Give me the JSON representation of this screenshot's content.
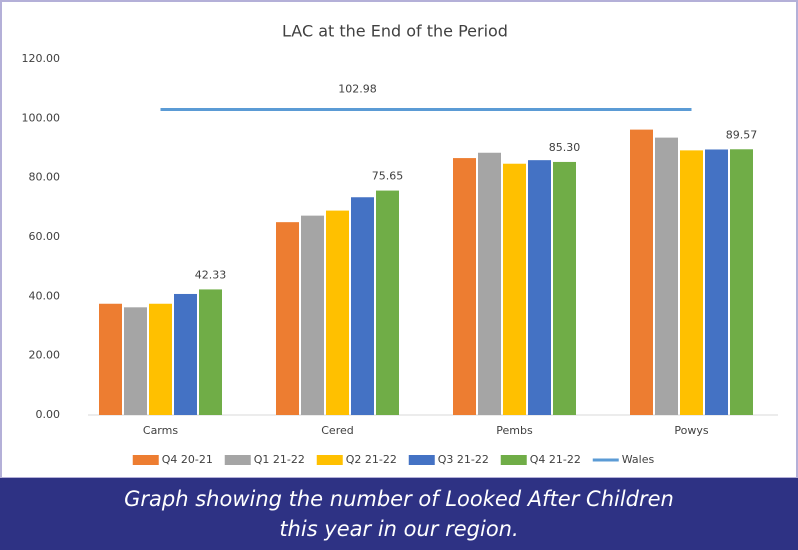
{
  "chart_data": {
    "type": "bar",
    "title": "LAC at the End of the Period",
    "categories": [
      "Carms",
      "Cered",
      "Pembs",
      "Powys"
    ],
    "series": [
      {
        "name": "Q4 20-21",
        "color": "#ed7d31",
        "values": [
          37.5,
          65.0,
          86.6,
          96.2
        ]
      },
      {
        "name": "Q1 21-22",
        "color": "#a5a5a5",
        "values": [
          36.3,
          67.2,
          88.4,
          93.5
        ]
      },
      {
        "name": "Q2 21-22",
        "color": "#ffc000",
        "values": [
          37.5,
          68.9,
          84.7,
          89.2
        ]
      },
      {
        "name": "Q3 21-22",
        "color": "#4472c4",
        "values": [
          40.8,
          73.4,
          85.9,
          89.5
        ]
      },
      {
        "name": "Q4 21-22",
        "color": "#70ad47",
        "values": [
          42.33,
          75.65,
          85.3,
          89.57
        ],
        "value_labels": [
          "42.33",
          "75.65",
          "85.30",
          "89.57"
        ]
      },
      {
        "name": "Wales",
        "color": "#5b9bd5",
        "type": "line",
        "values": [
          102.98,
          102.98,
          102.98,
          102.98
        ],
        "value_labels": [
          null,
          "102.98",
          null,
          null
        ]
      }
    ],
    "ylim": [
      0,
      120
    ],
    "yticks": [
      {
        "value": 0,
        "label": "0.00"
      },
      {
        "value": 20,
        "label": "20.00"
      },
      {
        "value": 40,
        "label": "40.00"
      },
      {
        "value": 60,
        "label": "60.00"
      },
      {
        "value": 80,
        "label": "80.00"
      },
      {
        "value": 100,
        "label": "100.00"
      },
      {
        "value": 120,
        "label": "120.00"
      }
    ],
    "grid": false,
    "legend": "bottom"
  },
  "caption": [
    "Graph showing the number of Looked After Children",
    "this year in our region."
  ]
}
